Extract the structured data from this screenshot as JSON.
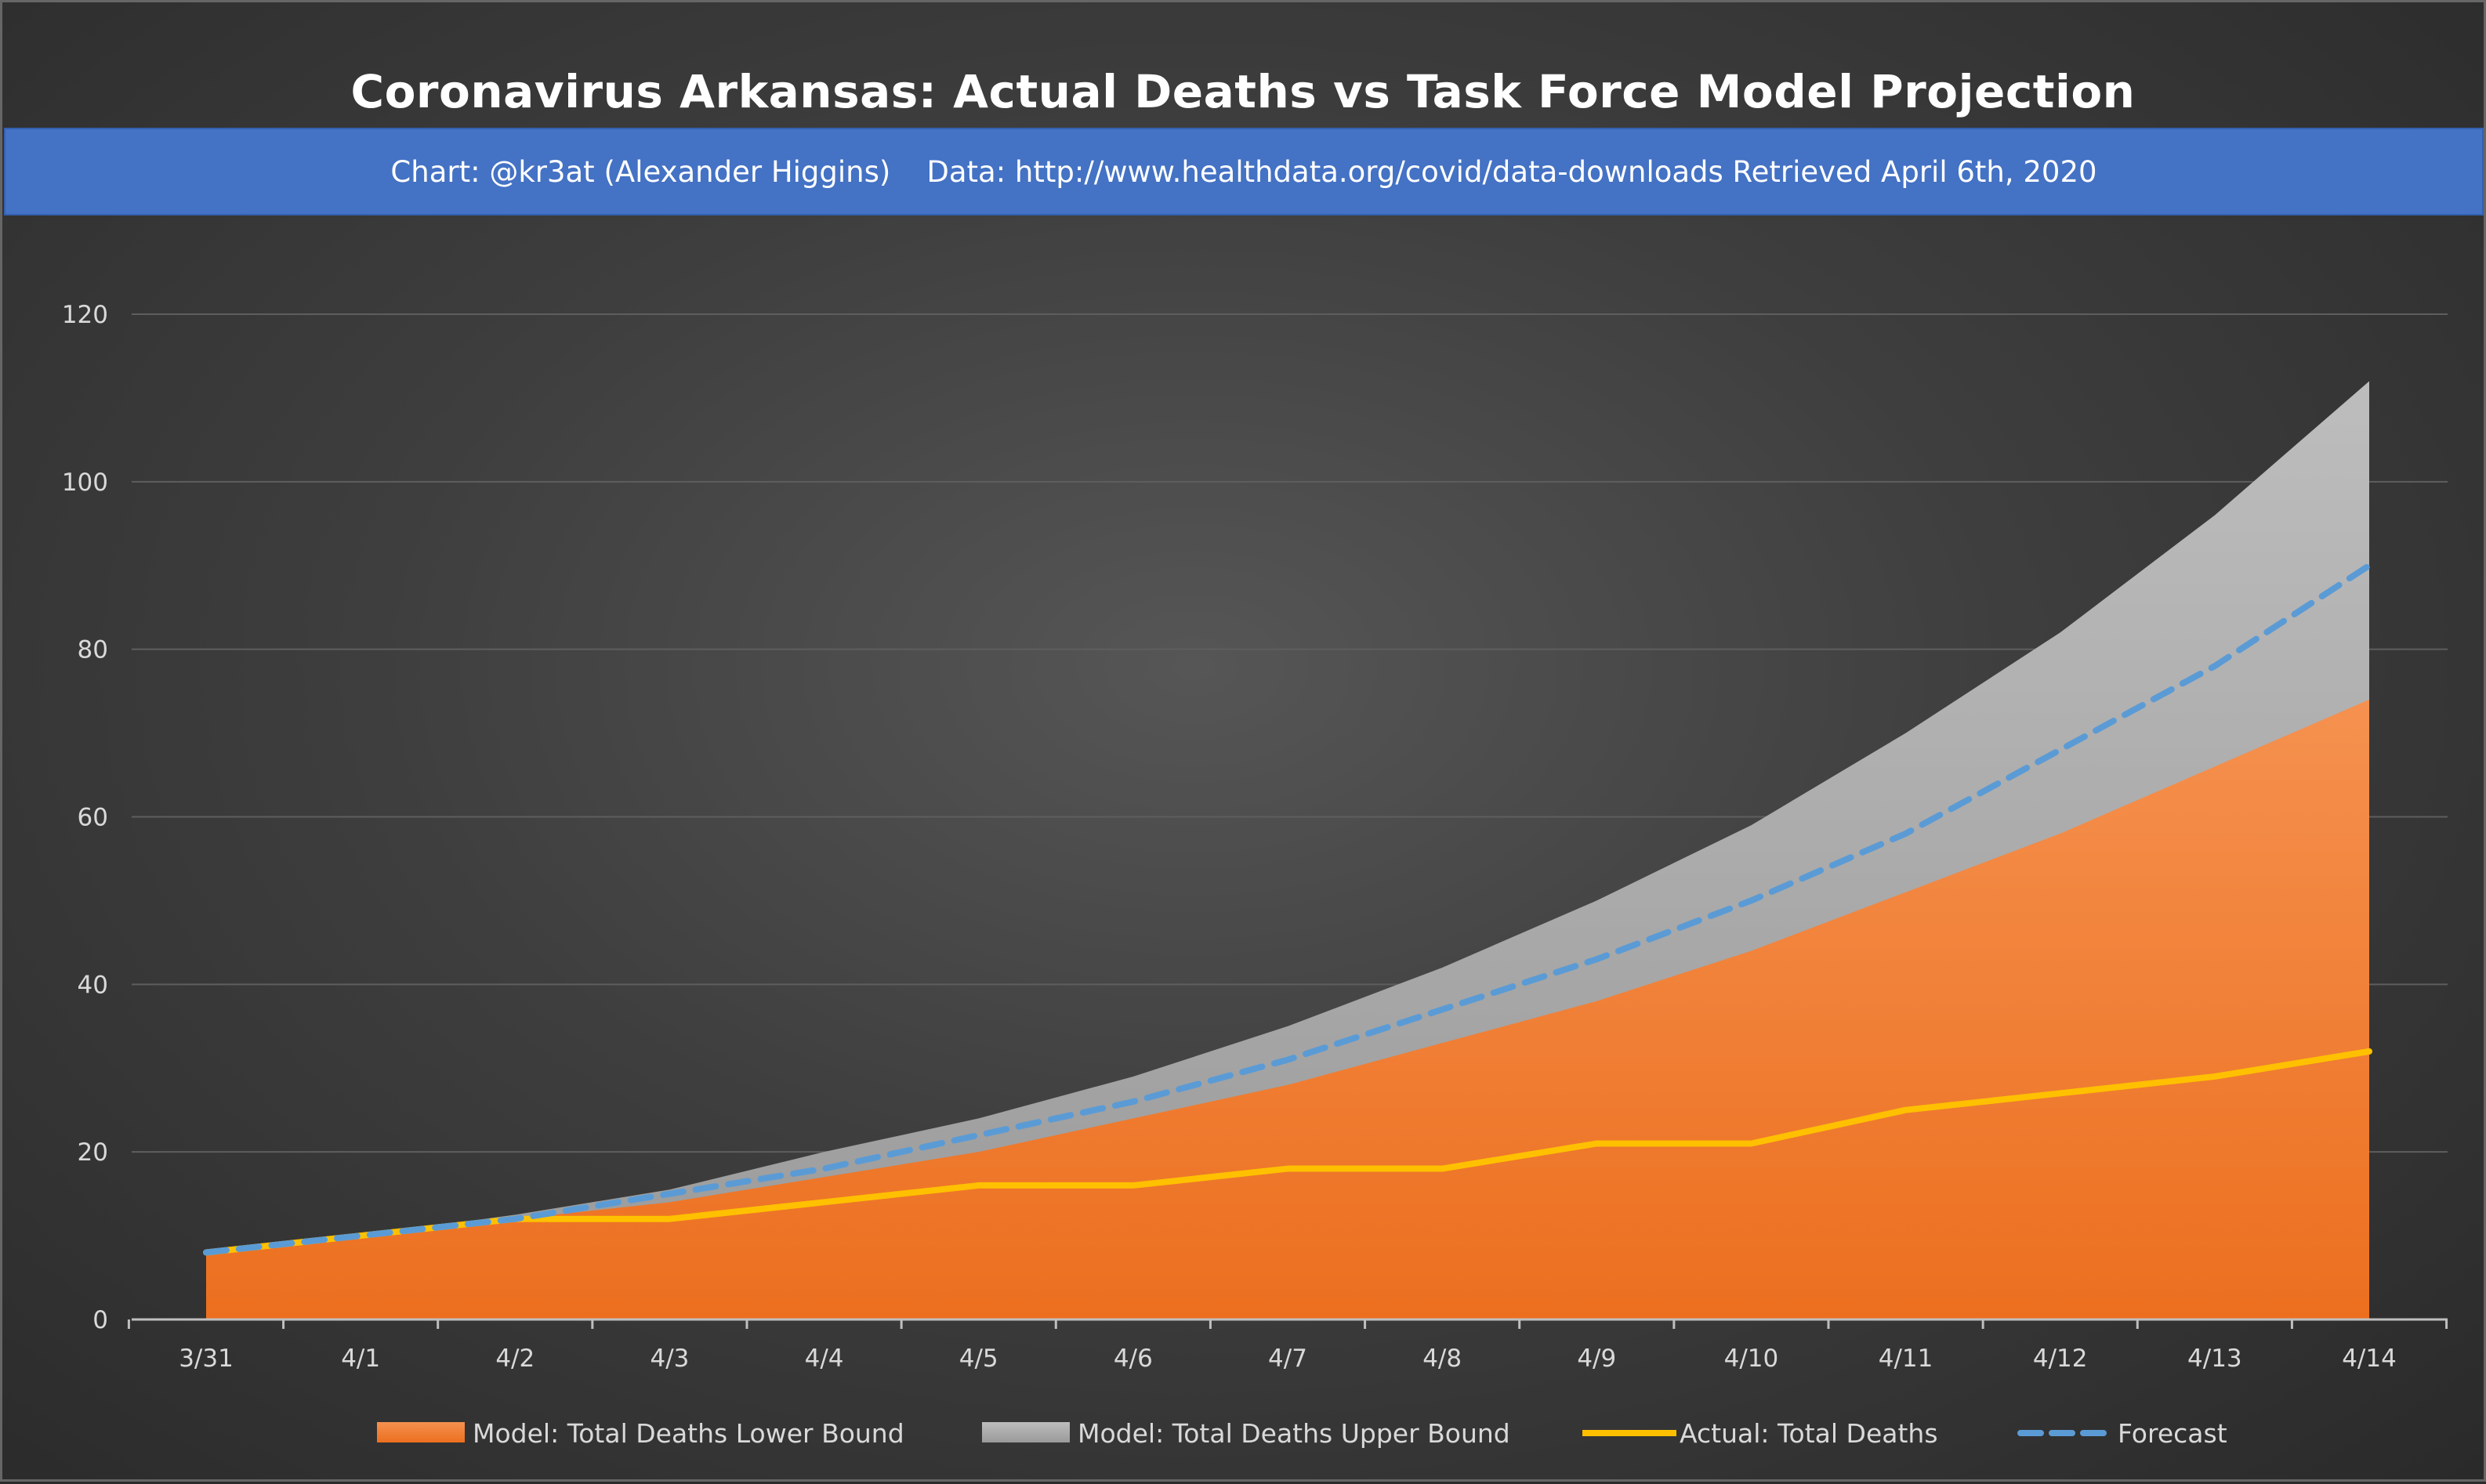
{
  "title": "Coronavirus Arkansas: Actual Deaths vs Task Force Model Projection",
  "subtitle": {
    "chart_credit": "Chart: @kr3at (Alexander Higgins)",
    "data_source": "Data: http://www.healthdata.org/covid/data-downloads Retrieved April 6th, 2020",
    "color": "#4472c4"
  },
  "chart_data": {
    "type": "area",
    "title": "Coronavirus Arkansas: Actual Deaths vs Task Force Model Projection",
    "xlabel": "",
    "ylabel": "",
    "categories": [
      "3/31",
      "4/1",
      "4/2",
      "4/3",
      "4/4",
      "4/5",
      "4/6",
      "4/7",
      "4/8",
      "4/9",
      "4/10",
      "4/11",
      "4/12",
      "4/13",
      "4/14"
    ],
    "ylim": [
      0,
      120
    ],
    "yticks": [
      0,
      20,
      40,
      60,
      80,
      100,
      120
    ],
    "grid": true,
    "legend_position": "bottom",
    "series": [
      {
        "name": "Model: Total Deaths Lower Bound",
        "kind": "area",
        "color": "#f07f3c",
        "values": [
          8,
          10,
          12,
          14,
          17,
          20,
          24,
          28,
          33,
          38,
          44,
          51,
          58,
          66,
          74
        ]
      },
      {
        "name": "Model: Total Deaths Upper Bound",
        "kind": "area",
        "color": "#a6a6a6",
        "values": [
          8,
          10,
          12.5,
          15.5,
          20,
          24,
          29,
          35,
          42,
          50,
          59,
          70,
          82,
          96,
          112
        ]
      },
      {
        "name": "Actual: Total Deaths",
        "kind": "line",
        "color": "#ffc000",
        "values": [
          8,
          10,
          12,
          12,
          14,
          16,
          16,
          18,
          18,
          21,
          21,
          25,
          27,
          29,
          32
        ]
      },
      {
        "name": "Forecast",
        "kind": "dashed-line",
        "color": "#5b9bd5",
        "values": [
          8,
          10,
          12,
          15,
          18,
          22,
          26,
          31,
          37,
          43,
          50,
          58,
          68,
          78,
          90
        ]
      }
    ]
  }
}
